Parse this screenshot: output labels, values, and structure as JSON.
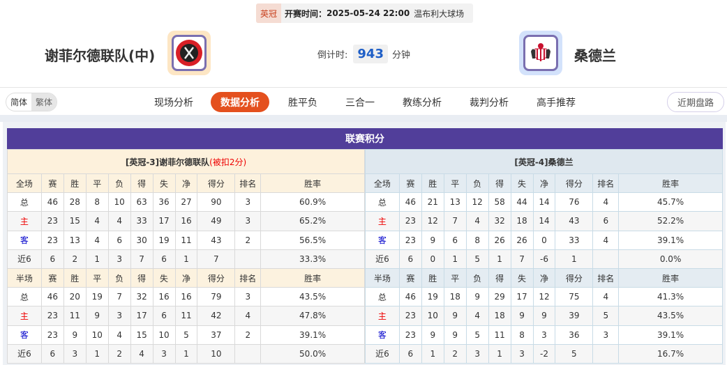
{
  "match": {
    "league": "英冠",
    "kickoff_label": "开赛时间：",
    "kickoff": "2025-05-24 22:00",
    "venue": "温布利大球场",
    "home": "谢菲尔德联队(中)",
    "away": "桑德兰",
    "countdown_label": "倒计时:",
    "countdown_value": "943",
    "countdown_unit": "分钟"
  },
  "lang": {
    "simplified": "简体",
    "traditional": "繁体",
    "active": "简体"
  },
  "tabs": [
    {
      "label": "现场分析",
      "active": false
    },
    {
      "label": "数据分析",
      "active": true
    },
    {
      "label": "胜平负",
      "active": false
    },
    {
      "label": "三合一",
      "active": false
    },
    {
      "label": "教练分析",
      "active": false
    },
    {
      "label": "裁判分析",
      "active": false
    },
    {
      "label": "高手推荐",
      "active": false
    }
  ],
  "recent_button": "近期盘路",
  "colors": {
    "accent": "#e4501e",
    "title_bar": "#513e9a",
    "home_row": "#ee0000",
    "away_row": "#0000cc"
  },
  "standings": {
    "title": "联赛积分",
    "columns": [
      "赛",
      "胜",
      "平",
      "负",
      "得",
      "失",
      "净",
      "得分",
      "排名",
      "胜率"
    ],
    "home": {
      "header": "[英冠-3]谢菲尔德联队",
      "note": "(被扣2分)",
      "full": {
        "label": "全场",
        "rows": [
          [
            "总",
            "46",
            "28",
            "8",
            "10",
            "63",
            "36",
            "27",
            "90",
            "3",
            "60.9%"
          ],
          [
            "主",
            "23",
            "15",
            "4",
            "4",
            "33",
            "17",
            "16",
            "49",
            "3",
            "65.2%"
          ],
          [
            "客",
            "23",
            "13",
            "4",
            "6",
            "30",
            "19",
            "11",
            "43",
            "2",
            "56.5%"
          ],
          [
            "近6",
            "6",
            "2",
            "1",
            "3",
            "7",
            "6",
            "1",
            "7",
            "",
            "33.3%"
          ]
        ]
      },
      "half": {
        "label": "半场",
        "rows": [
          [
            "总",
            "46",
            "20",
            "19",
            "7",
            "32",
            "16",
            "16",
            "79",
            "3",
            "43.5%"
          ],
          [
            "主",
            "23",
            "11",
            "9",
            "3",
            "17",
            "6",
            "11",
            "42",
            "4",
            "47.8%"
          ],
          [
            "客",
            "23",
            "9",
            "10",
            "4",
            "15",
            "10",
            "5",
            "37",
            "2",
            "39.1%"
          ],
          [
            "近6",
            "6",
            "3",
            "1",
            "2",
            "4",
            "3",
            "1",
            "10",
            "",
            "50.0%"
          ]
        ]
      }
    },
    "away": {
      "header": "[英冠-4]桑德兰",
      "note": "",
      "full": {
        "label": "全场",
        "rows": [
          [
            "总",
            "46",
            "21",
            "13",
            "12",
            "58",
            "44",
            "14",
            "76",
            "4",
            "45.7%"
          ],
          [
            "主",
            "23",
            "12",
            "7",
            "4",
            "32",
            "18",
            "14",
            "43",
            "6",
            "52.2%"
          ],
          [
            "客",
            "23",
            "9",
            "6",
            "8",
            "26",
            "26",
            "0",
            "33",
            "4",
            "39.1%"
          ],
          [
            "近6",
            "6",
            "0",
            "1",
            "5",
            "1",
            "7",
            "-6",
            "1",
            "",
            "0.0%"
          ]
        ]
      },
      "half": {
        "label": "半场",
        "rows": [
          [
            "总",
            "46",
            "19",
            "18",
            "9",
            "29",
            "17",
            "12",
            "75",
            "4",
            "41.3%"
          ],
          [
            "主",
            "23",
            "10",
            "9",
            "4",
            "18",
            "9",
            "9",
            "39",
            "5",
            "43.5%"
          ],
          [
            "客",
            "23",
            "9",
            "9",
            "5",
            "11",
            "8",
            "3",
            "36",
            "3",
            "39.1%"
          ],
          [
            "近6",
            "6",
            "1",
            "2",
            "3",
            "1",
            "3",
            "-2",
            "5",
            "",
            "16.7%"
          ]
        ]
      }
    }
  }
}
